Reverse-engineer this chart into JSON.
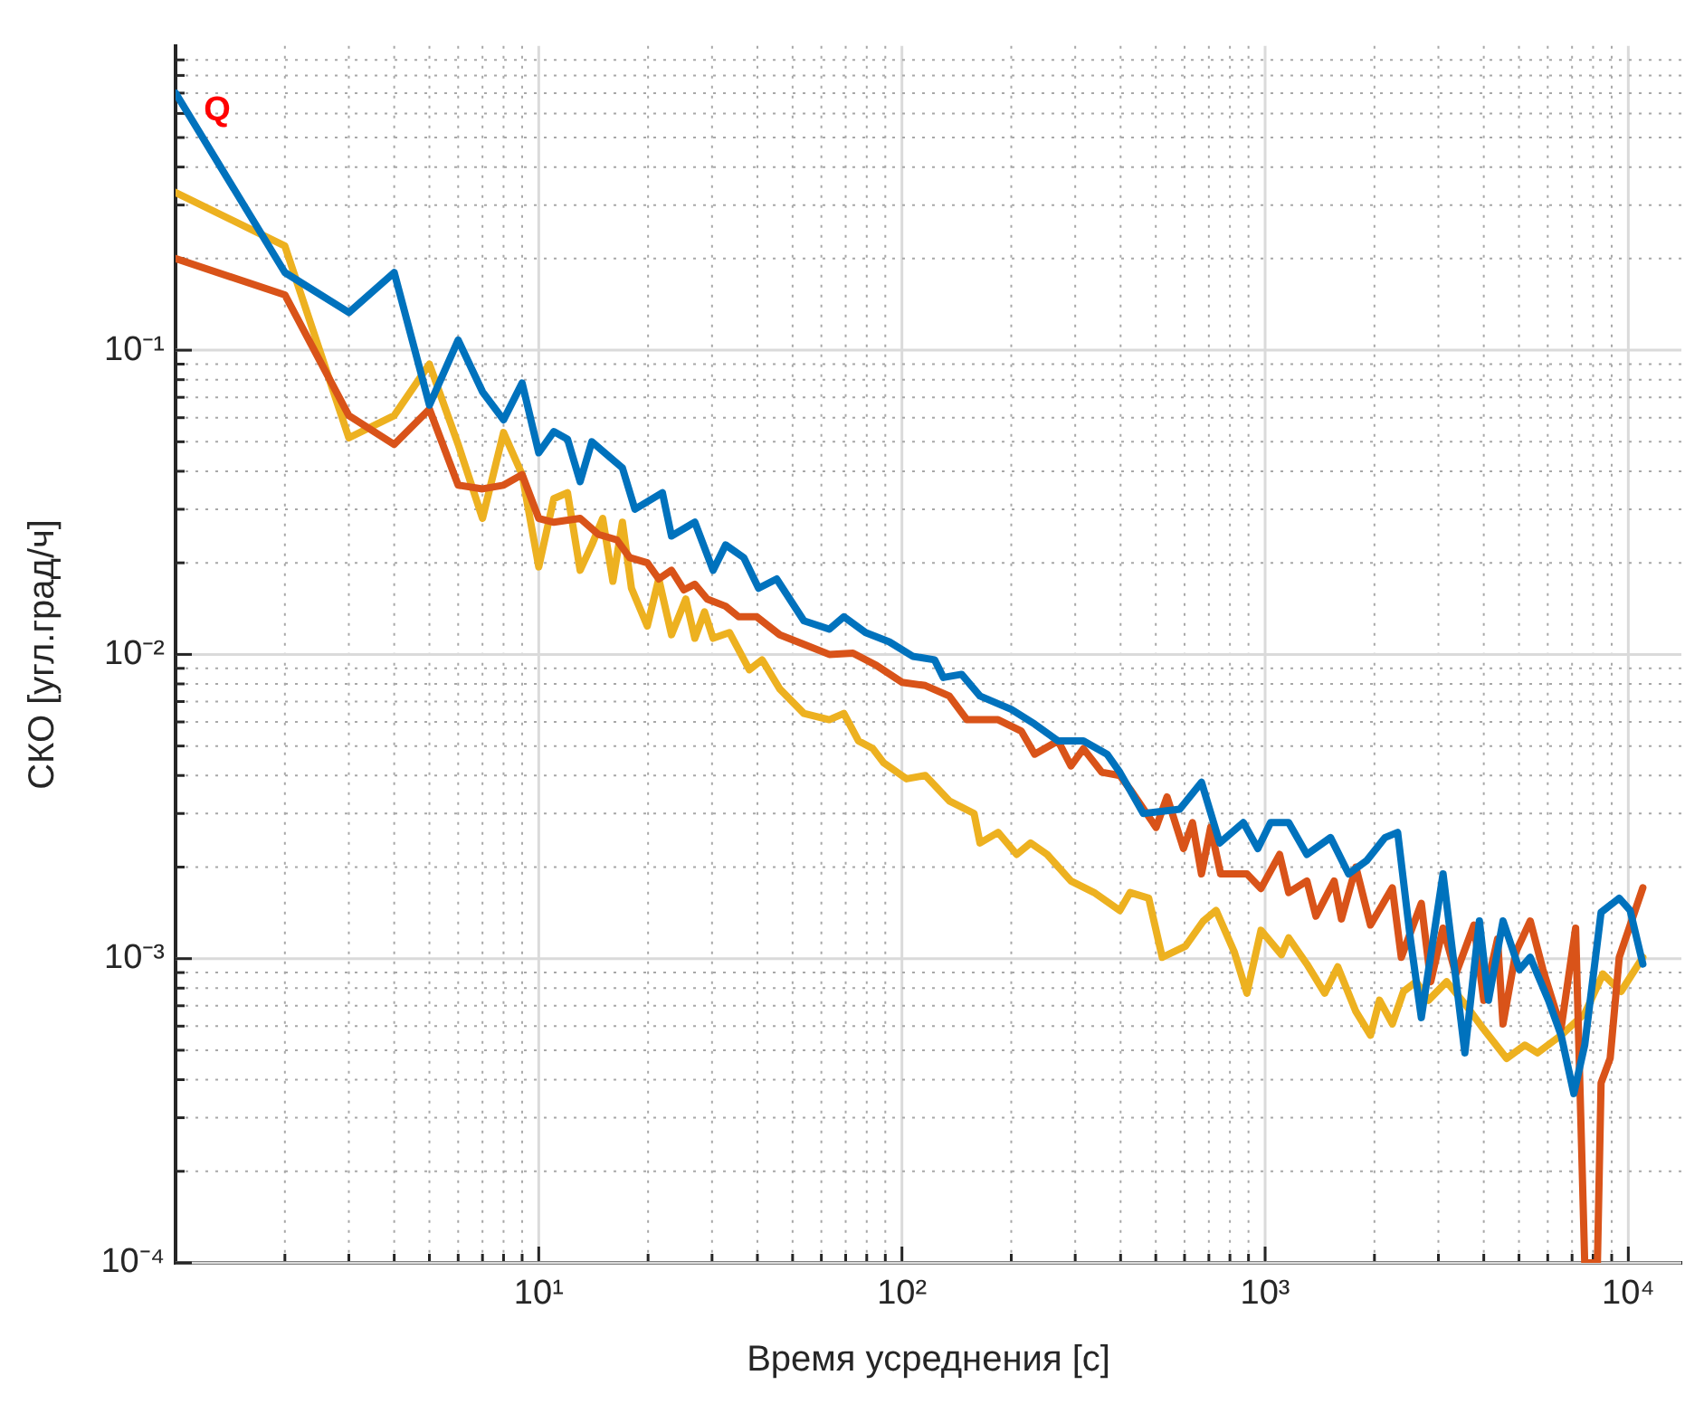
{
  "chart_data": {
    "type": "line",
    "xlabel": "Время усреднения [с]",
    "ylabel": "СКО [угл.град/ч]",
    "log": "xy",
    "grid": true,
    "legend": false,
    "marker": "none",
    "line_style": "solid",
    "xlim": [
      1,
      14000
    ],
    "xticks": [
      {
        "value": 2,
        "label": null
      },
      {
        "value": 3,
        "label": null
      },
      {
        "value": 4,
        "label": null
      },
      {
        "value": 5,
        "label": null
      },
      {
        "value": 6,
        "label": null
      },
      {
        "value": 7,
        "label": null
      },
      {
        "value": 8,
        "label": null
      },
      {
        "value": 9,
        "label": null
      },
      {
        "value": 10,
        "label": "10¹"
      },
      {
        "value": 20,
        "label": null
      },
      {
        "value": 30,
        "label": null
      },
      {
        "value": 40,
        "label": null
      },
      {
        "value": 50,
        "label": null
      },
      {
        "value": 60,
        "label": null
      },
      {
        "value": 70,
        "label": null
      },
      {
        "value": 80,
        "label": null
      },
      {
        "value": 90,
        "label": null
      },
      {
        "value": 100,
        "label": "10²"
      },
      {
        "value": 200,
        "label": null
      },
      {
        "value": 300,
        "label": null
      },
      {
        "value": 400,
        "label": null
      },
      {
        "value": 500,
        "label": null
      },
      {
        "value": 600,
        "label": null
      },
      {
        "value": 700,
        "label": null
      },
      {
        "value": 800,
        "label": null
      },
      {
        "value": 900,
        "label": null
      },
      {
        "value": 1000,
        "label": "10³"
      },
      {
        "value": 2000,
        "label": null
      },
      {
        "value": 3000,
        "label": null
      },
      {
        "value": 4000,
        "label": null
      },
      {
        "value": 5000,
        "label": null
      },
      {
        "value": 6000,
        "label": null
      },
      {
        "value": 7000,
        "label": null
      },
      {
        "value": 8000,
        "label": null
      },
      {
        "value": 9000,
        "label": null
      },
      {
        "value": 10000,
        "label": "10⁴"
      }
    ],
    "ylim": [
      0.0001,
      1
    ],
    "yticks": [
      {
        "value": 0.0001,
        "label": "10⁻⁴"
      },
      {
        "value": 0.0002,
        "label": null
      },
      {
        "value": 0.0003,
        "label": null
      },
      {
        "value": 0.0004,
        "label": null
      },
      {
        "value": 0.0005,
        "label": null
      },
      {
        "value": 0.0006,
        "label": null
      },
      {
        "value": 0.0007,
        "label": null
      },
      {
        "value": 0.0008,
        "label": null
      },
      {
        "value": 0.0009,
        "label": null
      },
      {
        "value": 0.001,
        "label": "10⁻³"
      },
      {
        "value": 0.002,
        "label": null
      },
      {
        "value": 0.003,
        "label": null
      },
      {
        "value": 0.004,
        "label": null
      },
      {
        "value": 0.005,
        "label": null
      },
      {
        "value": 0.006,
        "label": null
      },
      {
        "value": 0.007,
        "label": null
      },
      {
        "value": 0.008,
        "label": null
      },
      {
        "value": 0.009,
        "label": null
      },
      {
        "value": 0.01,
        "label": "10⁻²"
      },
      {
        "value": 0.02,
        "label": null
      },
      {
        "value": 0.03,
        "label": null
      },
      {
        "value": 0.04,
        "label": null
      },
      {
        "value": 0.05,
        "label": null
      },
      {
        "value": 0.06,
        "label": null
      },
      {
        "value": 0.07,
        "label": null
      },
      {
        "value": 0.08,
        "label": null
      },
      {
        "value": 0.09,
        "label": null
      },
      {
        "value": 0.1,
        "label": "10⁻¹"
      },
      {
        "value": 0.2,
        "label": null
      },
      {
        "value": 0.3,
        "label": null
      },
      {
        "value": 0.4,
        "label": null
      },
      {
        "value": 0.5,
        "label": null
      },
      {
        "value": 0.6,
        "label": null
      },
      {
        "value": 0.7,
        "label": null
      },
      {
        "value": 0.8,
        "label": null
      },
      {
        "value": 0.9,
        "label": null
      }
    ],
    "annotations": [
      "Q"
    ],
    "series": [
      {
        "color": "#0072bd",
        "x": [
          1,
          2,
          3,
          4,
          5,
          6,
          7,
          8,
          9,
          10,
          11,
          12,
          13,
          14,
          17,
          18.4,
          21.9,
          23.2,
          26.9,
          30.2,
          32.7,
          36.7,
          40.3,
          45.2,
          53.7,
          63.1,
          69.2,
          79.4,
          92.3,
          107,
          123,
          130,
          146,
          164,
          200,
          232,
          269,
          316,
          367,
          398,
          462,
          582,
          668,
          750,
          871,
          955,
          1035,
          1161,
          1303,
          1514,
          1698,
          1905,
          2138,
          2317,
          2512,
          2692,
          3090,
          3548,
          3890,
          4121,
          4519,
          5012,
          5370,
          6026,
          6531,
          7079,
          7586,
          8414,
          9441,
          10116,
          10965
        ],
        "values": [
          0.7,
          0.18,
          0.133,
          0.18,
          0.066,
          0.108,
          0.073,
          0.059,
          0.078,
          0.046,
          0.054,
          0.051,
          0.037,
          0.05,
          0.041,
          0.03,
          0.034,
          0.0245,
          0.0272,
          0.0189,
          0.0229,
          0.0208,
          0.0165,
          0.0177,
          0.0129,
          0.0121,
          0.0133,
          0.0118,
          0.011,
          0.00986,
          0.0096,
          0.0084,
          0.0086,
          0.0073,
          0.0066,
          0.0059,
          0.0052,
          0.0052,
          0.0047,
          0.0041,
          0.003,
          0.0031,
          0.0038,
          0.0024,
          0.0028,
          0.0023,
          0.0028,
          0.0028,
          0.0022,
          0.0025,
          0.0019,
          0.0021,
          0.0025,
          0.0026,
          0.00116,
          0.00064,
          0.0019,
          0.00049,
          0.00133,
          0.00073,
          0.00133,
          0.00092,
          0.00101,
          0.00073,
          0.00056,
          0.00036,
          0.00052,
          0.00142,
          0.00158,
          0.00144,
          0.00096
        ]
      },
      {
        "color": "#d95319",
        "x": [
          1,
          2,
          3,
          4,
          5,
          6,
          7,
          8,
          9,
          10,
          11,
          13,
          14.6,
          16.4,
          17.8,
          19.9,
          21.4,
          23.2,
          25.1,
          26.9,
          29.1,
          32.7,
          35.5,
          39.8,
          46.1,
          53.7,
          63.1,
          73.3,
          85.1,
          100,
          116,
          135,
          151,
          184,
          213,
          232,
          269,
          292,
          316,
          355,
          398,
          425,
          501,
          537,
          596,
          631,
          668,
          708,
          754,
          891,
          974,
          1096,
          1161,
          1303,
          1380,
          1549,
          1622,
          1778,
          1950,
          2240,
          2371,
          2692,
          2858,
          3090,
          3350,
          3758,
          4000,
          4365,
          4519,
          4900,
          5370,
          5821,
          6531,
          7161,
          7586,
          8222,
          8414,
          8913,
          9441,
          10965
        ],
        "values": [
          0.2,
          0.152,
          0.061,
          0.049,
          0.064,
          0.036,
          0.035,
          0.036,
          0.039,
          0.028,
          0.0272,
          0.028,
          0.0248,
          0.0238,
          0.0208,
          0.02,
          0.0177,
          0.0189,
          0.0163,
          0.017,
          0.0152,
          0.0144,
          0.0133,
          0.0133,
          0.0116,
          0.0108,
          0.01,
          0.0101,
          0.0092,
          0.0081,
          0.0079,
          0.0073,
          0.0061,
          0.0061,
          0.0056,
          0.0047,
          0.0052,
          0.0043,
          0.0049,
          0.0041,
          0.004,
          0.0036,
          0.0027,
          0.0034,
          0.0023,
          0.0028,
          0.0019,
          0.0027,
          0.0019,
          0.0019,
          0.0017,
          0.0022,
          0.00165,
          0.0018,
          0.00138,
          0.0018,
          0.00135,
          0.002,
          0.00129,
          0.00171,
          0.00101,
          0.00152,
          0.00084,
          0.00126,
          0.00089,
          0.00129,
          0.00073,
          0.00116,
          0.00061,
          0.00105,
          0.00133,
          0.00092,
          0.00059,
          0.00126,
          0.0001,
          0.0001,
          0.00039,
          0.00047,
          0.00101,
          0.00171
        ]
      },
      {
        "color": "#edb120",
        "x": [
          1,
          2,
          3,
          4,
          5,
          6,
          7,
          8,
          9,
          10,
          11,
          12,
          13,
          14,
          15,
          16,
          17,
          18,
          19.9,
          21.4,
          23.2,
          25.4,
          26.9,
          28.6,
          30.2,
          33.5,
          38,
          41.2,
          46.1,
          53.7,
          63.1,
          69.2,
          75.9,
          83.2,
          89.1,
          103,
          116,
          135,
          158,
          164,
          184,
          207,
          226,
          251,
          292,
          338,
          398,
          425,
          478,
          521,
          604,
          676,
          733,
          823,
          891,
          974,
          1109,
          1161,
          1303,
          1459,
          1585,
          1778,
          1950,
          2065,
          2240,
          2404,
          2606,
          2818,
          3162,
          3548,
          3981,
          4624,
          5188,
          5623,
          6531,
          7586,
          8511,
          9550,
          10965
        ],
        "values": [
          0.33,
          0.22,
          0.0515,
          0.061,
          0.09,
          0.049,
          0.028,
          0.0536,
          0.039,
          0.0194,
          0.0325,
          0.034,
          0.0189,
          0.0229,
          0.028,
          0.0174,
          0.0272,
          0.0165,
          0.0124,
          0.0177,
          0.0116,
          0.0152,
          0.0113,
          0.0138,
          0.0113,
          0.0118,
          0.0089,
          0.0096,
          0.0077,
          0.0064,
          0.0061,
          0.0064,
          0.0052,
          0.0049,
          0.0044,
          0.0039,
          0.004,
          0.0033,
          0.003,
          0.0024,
          0.0026,
          0.0022,
          0.0024,
          0.0022,
          0.0018,
          0.00165,
          0.00144,
          0.00165,
          0.00158,
          0.00101,
          0.0011,
          0.00133,
          0.00144,
          0.00105,
          0.00077,
          0.00124,
          0.00103,
          0.00117,
          0.00096,
          0.00077,
          0.00094,
          0.00067,
          0.00056,
          0.00073,
          0.00061,
          0.00078,
          0.00084,
          0.00073,
          0.00084,
          0.00071,
          0.00059,
          0.00047,
          0.00052,
          0.00049,
          0.00056,
          0.00066,
          0.00089,
          0.00078,
          0.00101
        ]
      }
    ]
  }
}
